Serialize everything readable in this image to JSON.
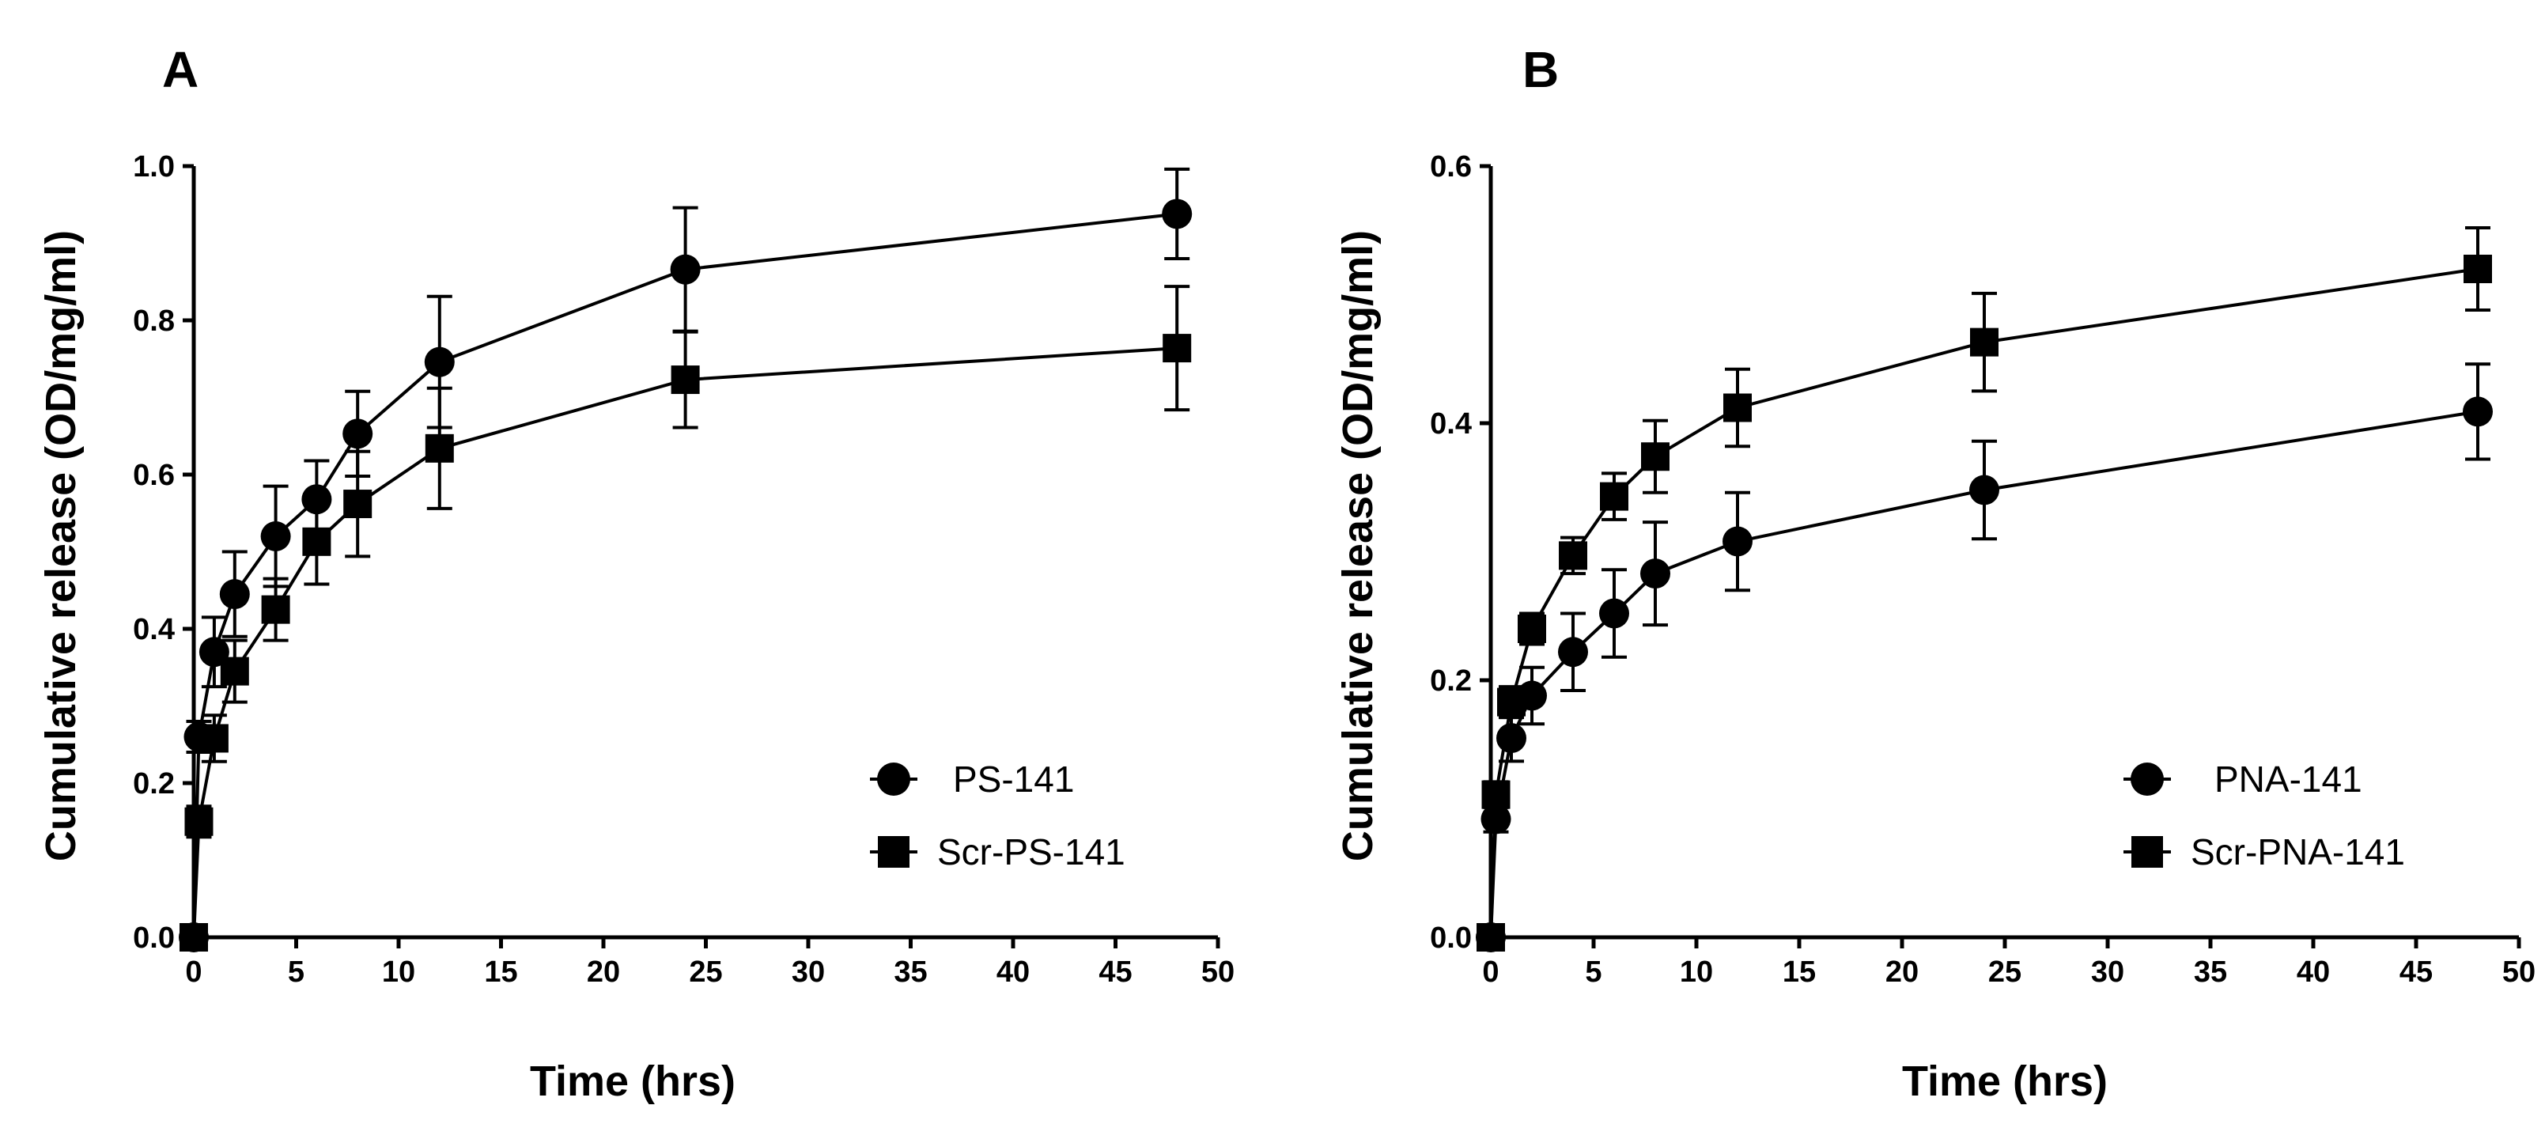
{
  "chart_data": [
    {
      "type": "line",
      "panel_label": "A",
      "title": "",
      "xlabel": "Time (hrs)",
      "ylabel": "Cumulative release (OD/mg/ml)",
      "xlim": [
        0,
        50
      ],
      "ylim": [
        0,
        1.0
      ],
      "xticks": [
        0,
        5,
        10,
        15,
        20,
        25,
        30,
        35,
        40,
        45,
        50
      ],
      "yticks": [
        0.0,
        0.2,
        0.4,
        0.6,
        0.8,
        1.0
      ],
      "xtick_labels": [
        "0",
        "5",
        "10",
        "15",
        "20",
        "25",
        "30",
        "35",
        "40",
        "45",
        "50"
      ],
      "ytick_labels": [
        "0.0",
        "0.2",
        "0.4",
        "0.6",
        "0.8",
        "1.0"
      ],
      "grid": false,
      "legend_position": "bottom-right",
      "series": [
        {
          "name": "PS-141",
          "marker": "circle",
          "x": [
            0,
            0.25,
            1,
            2,
            4,
            6,
            8,
            12,
            24,
            48
          ],
          "y": [
            0.0,
            0.26,
            0.37,
            0.445,
            0.52,
            0.568,
            0.653,
            0.746,
            0.866,
            0.938
          ],
          "err": [
            0.0,
            0.02,
            0.045,
            0.055,
            0.065,
            0.05,
            0.055,
            0.085,
            0.08,
            0.058
          ]
        },
        {
          "name": "Scr-PS-141",
          "marker": "square",
          "x": [
            0,
            0.25,
            1,
            2,
            4,
            6,
            8,
            12,
            24,
            48
          ],
          "y": [
            0.0,
            0.15,
            0.258,
            0.345,
            0.425,
            0.513,
            0.562,
            0.634,
            0.723,
            0.764
          ],
          "err": [
            0.0,
            0.02,
            0.03,
            0.04,
            0.04,
            0.055,
            0.068,
            0.078,
            0.062,
            0.08
          ]
        }
      ]
    },
    {
      "type": "line",
      "panel_label": "B",
      "title": "",
      "xlabel": "Time (hrs)",
      "ylabel": "Cumulative release (OD/mg/ml)",
      "xlim": [
        0,
        50
      ],
      "ylim": [
        0,
        0.6
      ],
      "xticks": [
        0,
        5,
        10,
        15,
        20,
        25,
        30,
        35,
        40,
        45,
        50
      ],
      "yticks": [
        0.0,
        0.2,
        0.4,
        0.6
      ],
      "xtick_labels": [
        "0",
        "5",
        "10",
        "15",
        "20",
        "25",
        "30",
        "35",
        "40",
        "45",
        "50"
      ],
      "ytick_labels": [
        "0.0",
        "0.2",
        "0.4",
        "0.6"
      ],
      "grid": false,
      "legend_position": "bottom-right",
      "series": [
        {
          "name": "PNA-141",
          "marker": "circle",
          "x": [
            0,
            0.25,
            1,
            2,
            4,
            6,
            8,
            12,
            24,
            48
          ],
          "y": [
            0.0,
            0.092,
            0.155,
            0.188,
            0.222,
            0.252,
            0.283,
            0.308,
            0.348,
            0.409
          ],
          "err": [
            0.0,
            0.01,
            0.018,
            0.022,
            0.03,
            0.034,
            0.04,
            0.038,
            0.038,
            0.037
          ]
        },
        {
          "name": "Scr-PNA-141",
          "marker": "square",
          "x": [
            0,
            0.25,
            1,
            2,
            4,
            6,
            8,
            12,
            24,
            48
          ],
          "y": [
            0.0,
            0.111,
            0.183,
            0.24,
            0.297,
            0.343,
            0.374,
            0.412,
            0.463,
            0.52
          ],
          "err": [
            0.0,
            0.01,
            0.012,
            0.012,
            0.014,
            0.018,
            0.028,
            0.03,
            0.038,
            0.032
          ]
        }
      ]
    }
  ]
}
